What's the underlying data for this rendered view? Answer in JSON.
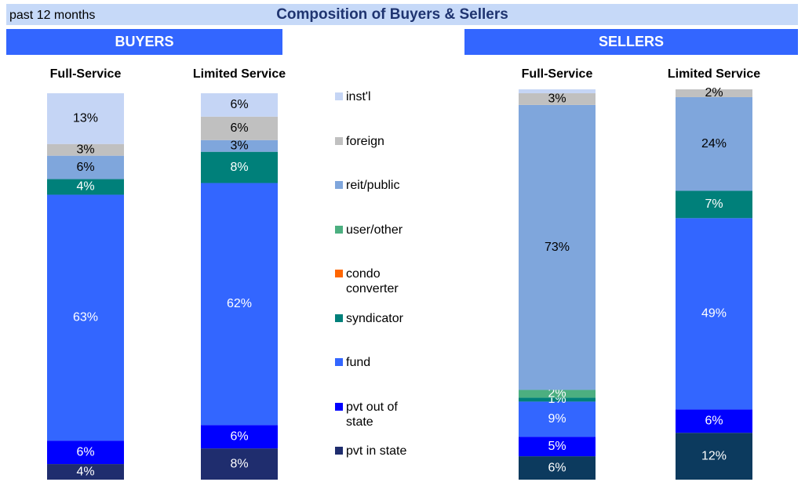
{
  "header": {
    "note": "past 12 months",
    "title": "Composition of Buyers & Sellers"
  },
  "chart_data": [
    {
      "type": "bar",
      "stacked": true,
      "title": "BUYERS",
      "categories": [
        "Full-Service",
        "Limited Service"
      ],
      "ylim": [
        0,
        100
      ],
      "series": [
        {
          "name": "pvt in state",
          "color": "#1f2d6e",
          "values": [
            4,
            8
          ],
          "value_labels": [
            "4%",
            "8%"
          ]
        },
        {
          "name": "pvt out of state",
          "color": "#0000ff",
          "values": [
            6,
            6
          ],
          "value_labels": [
            "6%",
            "6%"
          ]
        },
        {
          "name": "fund",
          "color": "#3366ff",
          "values": [
            63,
            62
          ],
          "value_labels": [
            "63%",
            "62%"
          ]
        },
        {
          "name": "syndicator",
          "color": "#00807a",
          "values": [
            4,
            8
          ],
          "value_labels": [
            "4%",
            "8%"
          ]
        },
        {
          "name": "condo converter",
          "color": "#ff6600",
          "values": [
            0,
            0
          ],
          "value_labels": [
            null,
            null
          ]
        },
        {
          "name": "user/other",
          "color": "#4caf80",
          "values": [
            0,
            0
          ],
          "value_labels": [
            null,
            null
          ]
        },
        {
          "name": "reit/public",
          "color": "#7fa6dc",
          "values": [
            6,
            3
          ],
          "value_labels": [
            "6%",
            "3%"
          ]
        },
        {
          "name": "foreign",
          "color": "#c0c0c0",
          "values": [
            3,
            6
          ],
          "value_labels": [
            "3%",
            "6%"
          ]
        },
        {
          "name": "inst'l",
          "color": "#c5d5f5",
          "values": [
            13,
            6
          ],
          "value_labels": [
            "13%",
            "6%"
          ]
        }
      ]
    },
    {
      "type": "bar",
      "stacked": true,
      "title": "SELLERS",
      "categories": [
        "Full-Service",
        "Limited Service"
      ],
      "ylim": [
        0,
        100
      ],
      "series": [
        {
          "color": "#0c3a5e",
          "values": [
            6,
            12
          ],
          "value_labels": [
            "6%",
            "12%"
          ]
        },
        {
          "color": "#0000ff",
          "values": [
            5,
            6
          ],
          "value_labels": [
            "5%",
            "6%"
          ]
        },
        {
          "color": "#3366ff",
          "values": [
            9,
            49
          ],
          "value_labels": [
            "9%",
            "49%"
          ]
        },
        {
          "color": "#00807a",
          "values": [
            1,
            7
          ],
          "value_labels": [
            "1%",
            "7%"
          ]
        },
        {
          "color": "#ff6600",
          "values": [
            0,
            0
          ],
          "value_labels": [
            null,
            null
          ]
        },
        {
          "color": "#4caf80",
          "values": [
            2,
            0
          ],
          "value_labels": [
            "2%",
            null
          ]
        },
        {
          "color": "#7fa6dc",
          "values": [
            73,
            24
          ],
          "value_labels": [
            "73%",
            "24%"
          ]
        },
        {
          "color": "#c0c0c0",
          "values": [
            3,
            2
          ],
          "value_labels": [
            "3%",
            "2%"
          ]
        },
        {
          "color": "#c5d5f5",
          "values": [
            1,
            0
          ],
          "value_labels": [
            null,
            null
          ]
        }
      ]
    }
  ]
}
